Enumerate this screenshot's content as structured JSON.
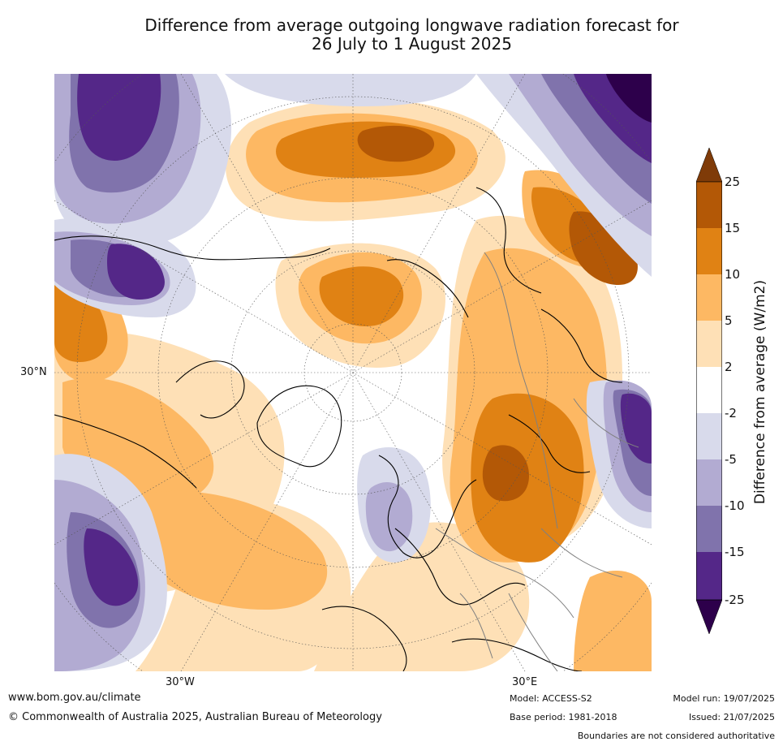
{
  "title": {
    "line1": "Difference from average outgoing longwave radiation forecast for",
    "line2": "26 July to 1 August 2025"
  },
  "map": {
    "projection": "north-polar-stereographic",
    "labels": {
      "lat_30n": "30°N",
      "lon_30w": "30°W",
      "lon_30e": "30°E"
    }
  },
  "colorbar": {
    "title": "Difference from average (W/m2)",
    "ticks": [
      "25",
      "15",
      "10",
      "5",
      "2",
      "-2",
      "-5",
      "-10",
      "-15",
      "-25"
    ],
    "colors": {
      "above_25": "#7f3b08",
      "15_25": "#b35806",
      "10_15": "#e08214",
      "5_10": "#fdb863",
      "2_5": "#fee0b6",
      "neutral": "#ffffff",
      "-5_-2": "#d8daeb",
      "-10_-5": "#b2abd2",
      "-15_-10": "#8073ac",
      "-25_-15": "#542788",
      "below_-25": "#2d004b"
    }
  },
  "footer": {
    "website": "www.bom.gov.au/climate",
    "copyright": "© Commonwealth of Australia 2025, Australian Bureau of Meteorology",
    "model": "Model: ACCESS-S2",
    "base_period": "Base period: 1981-2018",
    "model_run": "Model run: 19/07/2025",
    "issued": "Issued: 21/07/2025",
    "disclaimer": "Boundaries are not considered authoritative"
  }
}
